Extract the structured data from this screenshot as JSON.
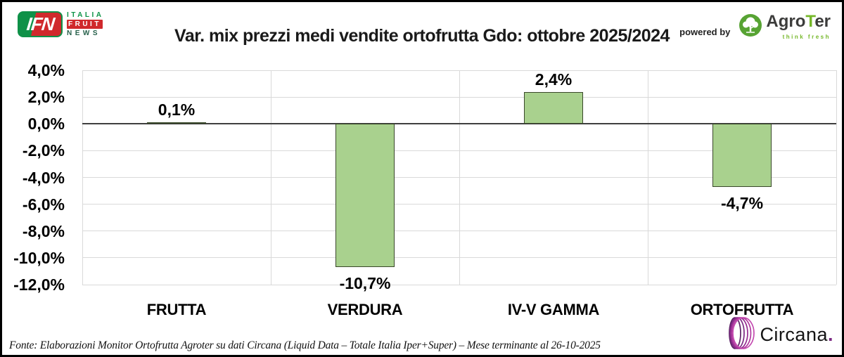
{
  "header": {
    "ifn_logo": {
      "badge_text": "IFN",
      "line1": "ITALIA",
      "line2": "FRUIT",
      "line3": "NEWS",
      "green": "#0f9148",
      "red": "#d0292c"
    },
    "powered_by_label": "powered by",
    "agroter_logo": {
      "name_agro": "Agro",
      "name_t": "T",
      "name_er": "er",
      "tagline": "think fresh",
      "green": "#76b82a"
    }
  },
  "chart_data": {
    "type": "bar",
    "title": "Var. mix prezzi medi vendite ortofrutta Gdo: ottobre 2025/2024",
    "categories": [
      "FRUTTA",
      "VERDURA",
      "IV-V GAMMA",
      "ORTOFRUTTA"
    ],
    "values": [
      0.1,
      -10.7,
      2.4,
      -4.7
    ],
    "value_labels": [
      "0,1%",
      "-10,7%",
      "2,4%",
      "-4,7%"
    ],
    "xlabel": "",
    "ylabel": "",
    "ylim": [
      -12,
      4
    ],
    "ytick_step": 2,
    "ytick_labels": [
      "4,0%",
      "2,0%",
      "0,0%",
      "-2,0%",
      "-4,0%",
      "-6,0%",
      "-8,0%",
      "-10,0%",
      "-12,0%"
    ],
    "grid": true,
    "legend": false,
    "colors": {
      "bar_fill": "#a9d18e",
      "bar_border": "#39482a",
      "grid": "#d9d9d9",
      "zero_line": "#3f3f3f",
      "text": "#000000"
    }
  },
  "footer": {
    "source": "Fonte: Elaborazioni Monitor Ortofrutta Agroter su dati Circana (Liquid Data – Totale Italia Iper+Super) – Mese terminante al 26-10-2025",
    "circana_logo": {
      "name": "Circana",
      "dot": ".",
      "purple": "#962d91"
    }
  }
}
